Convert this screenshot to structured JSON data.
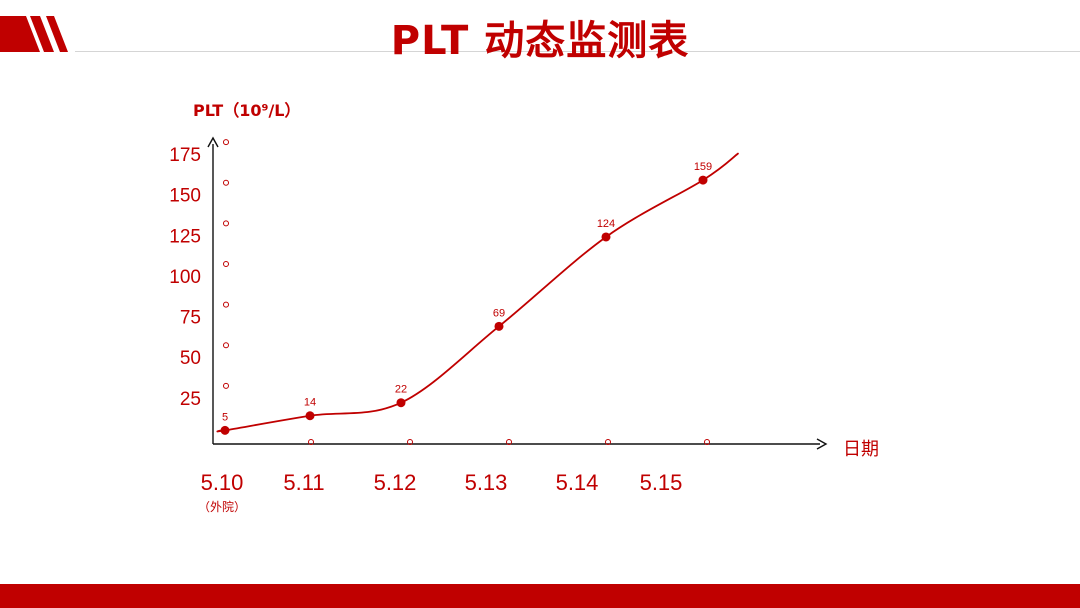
{
  "page": {
    "title": "PLT 动态监测表",
    "accent_color": "#c00000"
  },
  "chart_data": {
    "type": "line",
    "title": "",
    "ylabel": "PLT（10⁹/L）",
    "xlabel": "日期",
    "ylim": [
      0,
      175
    ],
    "yticks": [
      25,
      50,
      75,
      100,
      125,
      150,
      175
    ],
    "x_tick_labels": [
      "5.10",
      "5.11",
      "5.12",
      "5.13",
      "5.14",
      "5.15"
    ],
    "x_tick_note": "（外院）",
    "series": [
      {
        "points": [
          {
            "x": "5.10",
            "y": 5
          },
          {
            "x": "5.11",
            "y": 14
          },
          {
            "x": "5.12",
            "y": 22
          },
          {
            "x": "5.13",
            "y": 69
          },
          {
            "x": "5.14",
            "y": 124
          },
          {
            "x": "5.15",
            "y": 159
          }
        ]
      }
    ],
    "line_color": "#c00000",
    "grid": false
  }
}
